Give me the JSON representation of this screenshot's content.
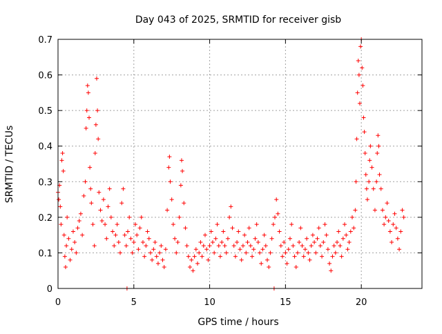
{
  "chart_data": {
    "type": "scatter",
    "title": "Day 043 of 2025, SRMTID for receiver gisb",
    "xlabel": "GPS time / hours",
    "ylabel": "SRMTID / TECUs",
    "xlim": [
      0,
      24
    ],
    "ylim": [
      0,
      0.7
    ],
    "xticks": [
      0,
      5,
      10,
      15,
      20
    ],
    "xtick_labels": [
      "0",
      "5",
      "10",
      "15",
      "20"
    ],
    "yticks": [
      0,
      0.1,
      0.2,
      0.3,
      0.4,
      0.5,
      0.6,
      0.7
    ],
    "ytick_labels": [
      "0",
      "0.1",
      "0.2",
      "0.3",
      "0.4",
      "0.5",
      "0.6",
      "0.7"
    ],
    "grid": true,
    "marker": "plus",
    "color": "#ff0000",
    "series": [
      {
        "name": "SRMTID",
        "points": [
          [
            0.0,
            0.27
          ],
          [
            0.05,
            0.25
          ],
          [
            0.1,
            0.29
          ],
          [
            0.15,
            0.23
          ],
          [
            0.2,
            0.18
          ],
          [
            0.25,
            0.36
          ],
          [
            0.3,
            0.38
          ],
          [
            0.35,
            0.33
          ],
          [
            0.4,
            0.15
          ],
          [
            0.45,
            0.09
          ],
          [
            0.5,
            0.06
          ],
          [
            0.55,
            0.12
          ],
          [
            0.6,
            0.2
          ],
          [
            0.7,
            0.14
          ],
          [
            0.8,
            0.08
          ],
          [
            0.9,
            0.11
          ],
          [
            1.0,
            0.16
          ],
          [
            1.1,
            0.13
          ],
          [
            1.2,
            0.1
          ],
          [
            1.3,
            0.17
          ],
          [
            1.4,
            0.19
          ],
          [
            1.5,
            0.21
          ],
          [
            1.6,
            0.15
          ],
          [
            1.7,
            0.26
          ],
          [
            1.8,
            0.3
          ],
          [
            1.85,
            0.45
          ],
          [
            1.9,
            0.5
          ],
          [
            1.95,
            0.57
          ],
          [
            2.0,
            0.55
          ],
          [
            2.05,
            0.48
          ],
          [
            2.1,
            0.34
          ],
          [
            2.15,
            0.28
          ],
          [
            2.2,
            0.24
          ],
          [
            2.3,
            0.18
          ],
          [
            2.4,
            0.12
          ],
          [
            2.45,
            0.38
          ],
          [
            2.5,
            0.46
          ],
          [
            2.55,
            0.59
          ],
          [
            2.6,
            0.5
          ],
          [
            2.65,
            0.42
          ],
          [
            2.7,
            0.27
          ],
          [
            2.8,
            0.22
          ],
          [
            2.9,
            0.19
          ],
          [
            3.0,
            0.25
          ],
          [
            3.1,
            0.18
          ],
          [
            3.2,
            0.14
          ],
          [
            3.3,
            0.23
          ],
          [
            3.4,
            0.28
          ],
          [
            3.5,
            0.2
          ],
          [
            3.6,
            0.16
          ],
          [
            3.7,
            0.12
          ],
          [
            3.8,
            0.15
          ],
          [
            3.9,
            0.18
          ],
          [
            4.0,
            0.13
          ],
          [
            4.1,
            0.1
          ],
          [
            4.2,
            0.24
          ],
          [
            4.3,
            0.28
          ],
          [
            4.4,
            0.15
          ],
          [
            4.5,
            0.12
          ],
          [
            4.55,
            0.0
          ],
          [
            4.6,
            0.16
          ],
          [
            4.7,
            0.2
          ],
          [
            4.8,
            0.14
          ],
          [
            4.9,
            0.1
          ],
          [
            5.0,
            0.13
          ],
          [
            5.1,
            0.18
          ],
          [
            5.2,
            0.15
          ],
          [
            5.3,
            0.11
          ],
          [
            5.4,
            0.17
          ],
          [
            5.5,
            0.2
          ],
          [
            5.6,
            0.13
          ],
          [
            5.7,
            0.09
          ],
          [
            5.8,
            0.12
          ],
          [
            5.9,
            0.16
          ],
          [
            6.0,
            0.14
          ],
          [
            6.1,
            0.1
          ],
          [
            6.2,
            0.08
          ],
          [
            6.3,
            0.11
          ],
          [
            6.4,
            0.13
          ],
          [
            6.5,
            0.09
          ],
          [
            6.6,
            0.07
          ],
          [
            6.7,
            0.1
          ],
          [
            6.8,
            0.12
          ],
          [
            6.9,
            0.08
          ],
          [
            7.0,
            0.06
          ],
          [
            7.1,
            0.11
          ],
          [
            7.2,
            0.22
          ],
          [
            7.3,
            0.34
          ],
          [
            7.35,
            0.37
          ],
          [
            7.4,
            0.3
          ],
          [
            7.5,
            0.25
          ],
          [
            7.6,
            0.18
          ],
          [
            7.7,
            0.14
          ],
          [
            7.8,
            0.1
          ],
          [
            7.9,
            0.13
          ],
          [
            8.0,
            0.2
          ],
          [
            8.1,
            0.29
          ],
          [
            8.15,
            0.36
          ],
          [
            8.2,
            0.33
          ],
          [
            8.3,
            0.24
          ],
          [
            8.4,
            0.17
          ],
          [
            8.5,
            0.12
          ],
          [
            8.6,
            0.09
          ],
          [
            8.7,
            0.06
          ],
          [
            8.8,
            0.08
          ],
          [
            8.9,
            0.05
          ],
          [
            9.0,
            0.09
          ],
          [
            9.1,
            0.11
          ],
          [
            9.2,
            0.07
          ],
          [
            9.3,
            0.1
          ],
          [
            9.4,
            0.13
          ],
          [
            9.5,
            0.09
          ],
          [
            9.6,
            0.12
          ],
          [
            9.7,
            0.15
          ],
          [
            9.8,
            0.11
          ],
          [
            9.9,
            0.08
          ],
          [
            10.0,
            0.12
          ],
          [
            10.1,
            0.16
          ],
          [
            10.2,
            0.13
          ],
          [
            10.3,
            0.1
          ],
          [
            10.4,
            0.14
          ],
          [
            10.5,
            0.18
          ],
          [
            10.6,
            0.12
          ],
          [
            10.7,
            0.09
          ],
          [
            10.8,
            0.13
          ],
          [
            10.9,
            0.16
          ],
          [
            11.0,
            0.12
          ],
          [
            11.1,
            0.1
          ],
          [
            11.2,
            0.14
          ],
          [
            11.3,
            0.2
          ],
          [
            11.4,
            0.23
          ],
          [
            11.5,
            0.17
          ],
          [
            11.6,
            0.12
          ],
          [
            11.7,
            0.09
          ],
          [
            11.8,
            0.13
          ],
          [
            11.9,
            0.16
          ],
          [
            12.0,
            0.11
          ],
          [
            12.1,
            0.08
          ],
          [
            12.2,
            0.12
          ],
          [
            12.3,
            0.15
          ],
          [
            12.4,
            0.1
          ],
          [
            12.5,
            0.13
          ],
          [
            12.6,
            0.17
          ],
          [
            12.7,
            0.12
          ],
          [
            12.8,
            0.09
          ],
          [
            12.9,
            0.11
          ],
          [
            13.0,
            0.14
          ],
          [
            13.1,
            0.18
          ],
          [
            13.2,
            0.13
          ],
          [
            13.3,
            0.1
          ],
          [
            13.4,
            0.07
          ],
          [
            13.5,
            0.11
          ],
          [
            13.6,
            0.15
          ],
          [
            13.7,
            0.12
          ],
          [
            13.8,
            0.08
          ],
          [
            13.9,
            0.06
          ],
          [
            14.0,
            0.1
          ],
          [
            14.1,
            0.14
          ],
          [
            14.2,
            0.18
          ],
          [
            14.25,
            0.0
          ],
          [
            14.3,
            0.2
          ],
          [
            14.4,
            0.25
          ],
          [
            14.5,
            0.21
          ],
          [
            14.6,
            0.16
          ],
          [
            14.7,
            0.12
          ],
          [
            14.8,
            0.09
          ],
          [
            14.9,
            0.13
          ],
          [
            15.0,
            0.1
          ],
          [
            15.1,
            0.07
          ],
          [
            15.2,
            0.11
          ],
          [
            15.3,
            0.14
          ],
          [
            15.4,
            0.18
          ],
          [
            15.5,
            0.12
          ],
          [
            15.6,
            0.09
          ],
          [
            15.7,
            0.06
          ],
          [
            15.8,
            0.1
          ],
          [
            15.9,
            0.13
          ],
          [
            16.0,
            0.17
          ],
          [
            16.1,
            0.12
          ],
          [
            16.2,
            0.09
          ],
          [
            16.3,
            0.11
          ],
          [
            16.4,
            0.14
          ],
          [
            16.5,
            0.1
          ],
          [
            16.6,
            0.08
          ],
          [
            16.7,
            0.12
          ],
          [
            16.8,
            0.15
          ],
          [
            16.9,
            0.13
          ],
          [
            17.0,
            0.1
          ],
          [
            17.1,
            0.14
          ],
          [
            17.2,
            0.17
          ],
          [
            17.3,
            0.12
          ],
          [
            17.4,
            0.09
          ],
          [
            17.5,
            0.13
          ],
          [
            17.6,
            0.18
          ],
          [
            17.7,
            0.15
          ],
          [
            17.8,
            0.11
          ],
          [
            17.9,
            0.07
          ],
          [
            18.0,
            0.05
          ],
          [
            18.1,
            0.09
          ],
          [
            18.2,
            0.12
          ],
          [
            18.3,
            0.1
          ],
          [
            18.4,
            0.13
          ],
          [
            18.5,
            0.16
          ],
          [
            18.6,
            0.12
          ],
          [
            18.7,
            0.09
          ],
          [
            18.8,
            0.14
          ],
          [
            18.9,
            0.18
          ],
          [
            19.0,
            0.15
          ],
          [
            19.1,
            0.11
          ],
          [
            19.2,
            0.13
          ],
          [
            19.3,
            0.16
          ],
          [
            19.4,
            0.2
          ],
          [
            19.5,
            0.17
          ],
          [
            19.6,
            0.22
          ],
          [
            19.65,
            0.3
          ],
          [
            19.7,
            0.42
          ],
          [
            19.75,
            0.55
          ],
          [
            19.8,
            0.64
          ],
          [
            19.85,
            0.6
          ],
          [
            19.9,
            0.52
          ],
          [
            19.95,
            0.68
          ],
          [
            20.0,
            0.7
          ],
          [
            20.05,
            0.62
          ],
          [
            20.1,
            0.57
          ],
          [
            20.15,
            0.48
          ],
          [
            20.2,
            0.44
          ],
          [
            20.25,
            0.38
          ],
          [
            20.3,
            0.32
          ],
          [
            20.35,
            0.28
          ],
          [
            20.4,
            0.25
          ],
          [
            20.5,
            0.3
          ],
          [
            20.55,
            0.36
          ],
          [
            20.6,
            0.4
          ],
          [
            20.7,
            0.34
          ],
          [
            20.8,
            0.28
          ],
          [
            20.9,
            0.22
          ],
          [
            21.0,
            0.3
          ],
          [
            21.05,
            0.38
          ],
          [
            21.1,
            0.43
          ],
          [
            21.15,
            0.4
          ],
          [
            21.2,
            0.32
          ],
          [
            21.3,
            0.28
          ],
          [
            21.4,
            0.22
          ],
          [
            21.5,
            0.18
          ],
          [
            21.6,
            0.2
          ],
          [
            21.7,
            0.24
          ],
          [
            21.8,
            0.19
          ],
          [
            21.9,
            0.16
          ],
          [
            22.0,
            0.13
          ],
          [
            22.1,
            0.18
          ],
          [
            22.2,
            0.21
          ],
          [
            22.3,
            0.17
          ],
          [
            22.4,
            0.14
          ],
          [
            22.5,
            0.11
          ],
          [
            22.6,
            0.16
          ],
          [
            22.7,
            0.22
          ],
          [
            22.8,
            0.2
          ]
        ]
      }
    ]
  }
}
